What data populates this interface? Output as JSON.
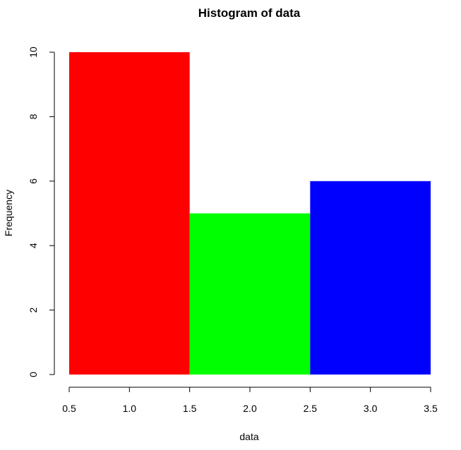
{
  "chart_data": {
    "type": "bar",
    "title": "Histogram of data",
    "xlabel": "data",
    "ylabel": "Frequency",
    "bins": [
      {
        "start": 0.5,
        "end": 1.5,
        "count": 10,
        "color": "#ff0000"
      },
      {
        "start": 1.5,
        "end": 2.5,
        "count": 5,
        "color": "#00ff00"
      },
      {
        "start": 2.5,
        "end": 3.5,
        "count": 6,
        "color": "#0000ff"
      }
    ],
    "xlim": [
      0.5,
      3.5
    ],
    "ylim": [
      0,
      10
    ],
    "x_ticks": [
      "0.5",
      "1.0",
      "1.5",
      "2.0",
      "2.5",
      "3.0",
      "3.5"
    ],
    "y_ticks": [
      "0",
      "2",
      "4",
      "6",
      "8",
      "10"
    ],
    "grid": false,
    "legend": "none"
  }
}
